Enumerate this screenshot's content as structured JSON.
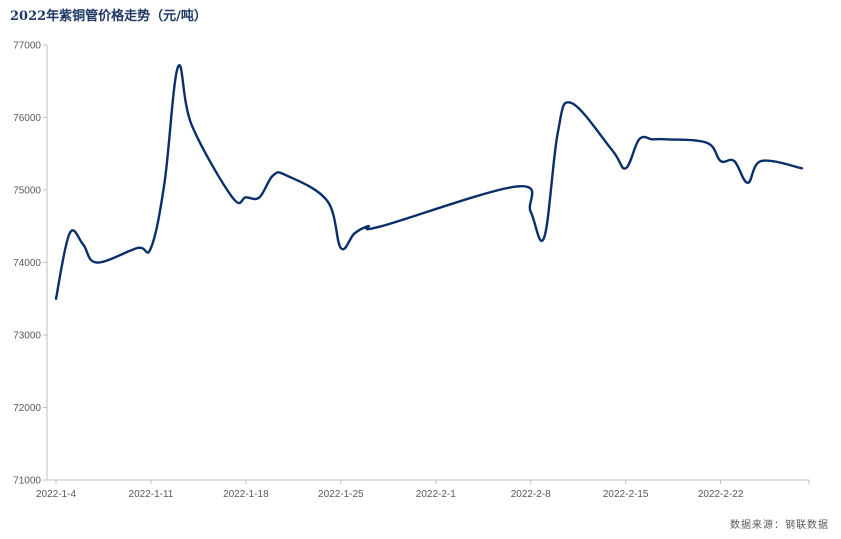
{
  "chart_data": {
    "type": "line",
    "title": "2022年紫铜管价格走势（元/吨）",
    "source": "数据来源：钢联数据",
    "ylim": [
      71000,
      77000
    ],
    "yticks": [
      "71000",
      "72000",
      "73000",
      "74000",
      "75000",
      "76000",
      "77000"
    ],
    "xticks": [
      "2022-1-4",
      "2022-1-11",
      "2022-1-18",
      "2022-1-25",
      "2022-2-1",
      "2022-2-8",
      "2022-2-15",
      "2022-2-22"
    ],
    "grid": false,
    "legend": "none",
    "line_color": "#0b2f6b",
    "series": [
      {
        "values": [
          {
            "x": "2022-1-4",
            "y": 73500
          },
          {
            "x": "2022-1-5",
            "y": 74400
          },
          {
            "x": "2022-1-6",
            "y": 74250
          },
          {
            "x": "2022-1-7",
            "y": 74000
          },
          {
            "x": "2022-1-10",
            "y": 74200
          },
          {
            "x": "2022-1-11",
            "y": 74200
          },
          {
            "x": "2022-1-12",
            "y": 75100
          },
          {
            "x": "2022-1-13",
            "y": 76700
          },
          {
            "x": "2022-1-14",
            "y": 75900
          },
          {
            "x": "2022-1-17",
            "y": 74900
          },
          {
            "x": "2022-1-18",
            "y": 74900
          },
          {
            "x": "2022-1-19",
            "y": 74900
          },
          {
            "x": "2022-1-20",
            "y": 75200
          },
          {
            "x": "2022-1-21",
            "y": 75200
          },
          {
            "x": "2022-1-24",
            "y": 74850
          },
          {
            "x": "2022-1-25",
            "y": 74200
          },
          {
            "x": "2022-1-26",
            "y": 74400
          },
          {
            "x": "2022-1-27",
            "y": 74500
          },
          {
            "x": "2022-1-28",
            "y": 74500
          },
          {
            "x": "2022-2-7",
            "y": 75050
          },
          {
            "x": "2022-2-8",
            "y": 74700
          },
          {
            "x": "2022-2-9",
            "y": 74350
          },
          {
            "x": "2022-2-10",
            "y": 75800
          },
          {
            "x": "2022-2-11",
            "y": 76200
          },
          {
            "x": "2022-2-14",
            "y": 75550
          },
          {
            "x": "2022-2-15",
            "y": 75300
          },
          {
            "x": "2022-2-16",
            "y": 75700
          },
          {
            "x": "2022-2-17",
            "y": 75700
          },
          {
            "x": "2022-2-18",
            "y": 75700
          },
          {
            "x": "2022-2-21",
            "y": 75650
          },
          {
            "x": "2022-2-22",
            "y": 75400
          },
          {
            "x": "2022-2-23",
            "y": 75400
          },
          {
            "x": "2022-2-24",
            "y": 75100
          },
          {
            "x": "2022-2-25",
            "y": 75400
          },
          {
            "x": "2022-2-28",
            "y": 75300
          }
        ]
      }
    ]
  }
}
